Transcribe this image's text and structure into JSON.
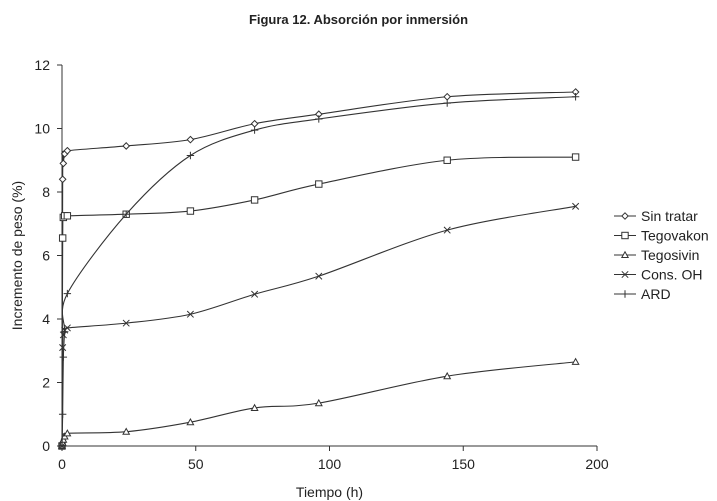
{
  "chart_data": {
    "type": "line",
    "title": "Figura 12. Absorción por inmersión",
    "xlabel": "Tiempo (h)",
    "ylabel": "Incremento de peso (%)",
    "xlim": [
      0,
      200
    ],
    "ylim": [
      0,
      12
    ],
    "xticks": [
      0,
      50,
      100,
      150,
      200
    ],
    "yticks": [
      0,
      2,
      4,
      6,
      8,
      10,
      12
    ],
    "grid": false,
    "legend_position": "right",
    "series": [
      {
        "name": "Sin tratar",
        "marker": "diamond",
        "points": [
          [
            0,
            0
          ],
          [
            0.25,
            8.4
          ],
          [
            0.5,
            8.9
          ],
          [
            1,
            9.2
          ],
          [
            2,
            9.3
          ],
          [
            24,
            9.45
          ],
          [
            48,
            9.65
          ],
          [
            72,
            10.15
          ],
          [
            96,
            10.45
          ],
          [
            144,
            11.0
          ],
          [
            192,
            11.15
          ]
        ]
      },
      {
        "name": "Tegovakon",
        "marker": "square",
        "points": [
          [
            0,
            0
          ],
          [
            0.25,
            6.55
          ],
          [
            0.5,
            7.2
          ],
          [
            1,
            7.25
          ],
          [
            2,
            7.25
          ],
          [
            24,
            7.3
          ],
          [
            48,
            7.4
          ],
          [
            72,
            7.75
          ],
          [
            96,
            8.25
          ],
          [
            144,
            9.0
          ],
          [
            192,
            9.1
          ]
        ]
      },
      {
        "name": "Tegosivin",
        "marker": "triangle",
        "points": [
          [
            0,
            0
          ],
          [
            0.25,
            0.1
          ],
          [
            0.5,
            0.2
          ],
          [
            1,
            0.3
          ],
          [
            2,
            0.4
          ],
          [
            24,
            0.45
          ],
          [
            48,
            0.75
          ],
          [
            72,
            1.2
          ],
          [
            96,
            1.35
          ],
          [
            144,
            2.2
          ],
          [
            192,
            2.65
          ]
        ]
      },
      {
        "name": "Cons. OH",
        "marker": "x",
        "points": [
          [
            0,
            0
          ],
          [
            0.25,
            3.1
          ],
          [
            0.5,
            3.5
          ],
          [
            1,
            3.65
          ],
          [
            2,
            3.72
          ],
          [
            24,
            3.87
          ],
          [
            48,
            4.15
          ],
          [
            72,
            4.78
          ],
          [
            96,
            5.35
          ],
          [
            144,
            6.8
          ],
          [
            192,
            7.55
          ]
        ]
      },
      {
        "name": "ARD",
        "marker": "plus",
        "points": [
          [
            0,
            0
          ],
          [
            0.25,
            1.0
          ],
          [
            0.5,
            2.8
          ],
          [
            1,
            3.6
          ],
          [
            2,
            4.8
          ],
          [
            24,
            7.3
          ],
          [
            48,
            9.15
          ],
          [
            72,
            9.95
          ],
          [
            96,
            10.3
          ],
          [
            144,
            10.8
          ],
          [
            192,
            11.0
          ]
        ]
      }
    ]
  }
}
